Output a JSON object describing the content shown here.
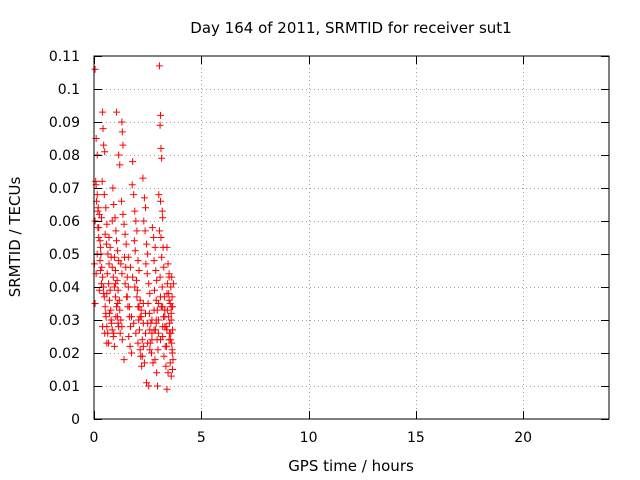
{
  "chart_data": {
    "type": "scatter",
    "title": "Day 164 of 2011, SRMTID for receiver sut1",
    "xlabel": "GPS time / hours",
    "ylabel": "SRMTID / TECUs",
    "xlim": [
      0,
      24
    ],
    "ylim": [
      0,
      0.11
    ],
    "x_ticks": [
      0,
      5,
      10,
      15,
      20
    ],
    "x_tick_labels": [
      "0",
      "5",
      "10",
      "15",
      "20"
    ],
    "y_ticks": [
      0,
      0.01,
      0.02,
      0.03,
      0.04,
      0.05,
      0.06,
      0.07,
      0.08,
      0.09,
      0.1,
      0.11
    ],
    "y_tick_labels": [
      "0",
      "0.01",
      "0.02",
      "0.03",
      "0.04",
      "0.05",
      "0.06",
      "0.07",
      "0.08",
      "0.09",
      "0.1",
      "0.11"
    ],
    "grid": true,
    "legend": "none",
    "marker": "plus",
    "color": "#ff0000",
    "series": [
      {
        "values": [
          [
            0.05,
            0.106
          ],
          [
            0.1,
            0.085
          ],
          [
            0.15,
            0.08
          ],
          [
            0.08,
            0.072
          ],
          [
            0.12,
            0.066
          ],
          [
            0.05,
            0.06
          ],
          [
            0.18,
            0.058
          ],
          [
            0.02,
            0.047
          ],
          [
            0.1,
            0.044
          ],
          [
            0.05,
            0.035
          ],
          [
            0.2,
            0.064
          ],
          [
            0.25,
            0.062
          ],
          [
            0.22,
            0.055
          ],
          [
            0.3,
            0.052
          ],
          [
            0.15,
            0.05
          ],
          [
            0.28,
            0.048
          ],
          [
            0.35,
            0.061
          ],
          [
            0.4,
            0.093
          ],
          [
            0.42,
            0.088
          ],
          [
            0.45,
            0.083
          ],
          [
            0.5,
            0.081
          ],
          [
            0.38,
            0.072
          ],
          [
            0.48,
            0.068
          ],
          [
            0.55,
            0.064
          ],
          [
            0.6,
            0.059
          ],
          [
            0.52,
            0.056
          ],
          [
            0.58,
            0.053
          ],
          [
            0.65,
            0.05
          ],
          [
            0.7,
            0.047
          ],
          [
            0.62,
            0.044
          ],
          [
            0.68,
            0.041
          ],
          [
            0.75,
            0.039
          ],
          [
            0.72,
            0.036
          ],
          [
            0.78,
            0.033
          ],
          [
            0.8,
            0.03
          ],
          [
            0.85,
            0.027
          ],
          [
            0.9,
            0.025
          ],
          [
            0.95,
            0.022
          ],
          [
            0.6,
            0.038
          ],
          [
            0.55,
            0.032
          ],
          [
            0.88,
            0.07
          ],
          [
            0.92,
            0.065
          ],
          [
            0.98,
            0.061
          ],
          [
            1.02,
            0.057
          ],
          [
            1.05,
            0.054
          ],
          [
            1.1,
            0.051
          ],
          [
            1.15,
            0.048
          ],
          [
            1.0,
            0.045
          ],
          [
            1.08,
            0.042
          ],
          [
            1.12,
            0.039
          ],
          [
            1.18,
            0.036
          ],
          [
            1.2,
            0.033
          ],
          [
            1.25,
            0.03
          ],
          [
            1.3,
            0.028
          ],
          [
            1.05,
            0.093
          ],
          [
            1.15,
            0.08
          ],
          [
            1.2,
            0.077
          ],
          [
            1.3,
            0.09
          ],
          [
            1.32,
            0.087
          ],
          [
            1.35,
            0.083
          ],
          [
            1.28,
            0.066
          ],
          [
            1.35,
            0.062
          ],
          [
            1.4,
            0.059
          ],
          [
            1.45,
            0.056
          ],
          [
            1.5,
            0.053
          ],
          [
            1.42,
            0.049
          ],
          [
            1.48,
            0.046
          ],
          [
            1.55,
            0.043
          ],
          [
            1.6,
            0.04
          ],
          [
            1.52,
            0.037
          ],
          [
            1.58,
            0.034
          ],
          [
            1.65,
            0.031
          ],
          [
            1.7,
            0.028
          ],
          [
            1.62,
            0.025
          ],
          [
            1.68,
            0.022
          ],
          [
            1.75,
            0.02
          ],
          [
            1.4,
            0.018
          ],
          [
            1.8,
            0.078
          ],
          [
            1.78,
            0.071
          ],
          [
            1.85,
            0.068
          ],
          [
            1.9,
            0.063
          ],
          [
            1.95,
            0.06
          ],
          [
            2.0,
            0.057
          ],
          [
            1.88,
            0.054
          ],
          [
            1.92,
            0.051
          ],
          [
            2.05,
            0.048
          ],
          [
            2.1,
            0.045
          ],
          [
            1.98,
            0.042
          ],
          [
            2.02,
            0.039
          ],
          [
            2.15,
            0.036
          ],
          [
            2.2,
            0.033
          ],
          [
            2.08,
            0.03
          ],
          [
            2.12,
            0.027
          ],
          [
            2.25,
            0.024
          ],
          [
            2.3,
            0.022
          ],
          [
            2.18,
            0.019
          ],
          [
            2.22,
            0.016
          ],
          [
            2.28,
            0.073
          ],
          [
            2.35,
            0.067
          ],
          [
            2.4,
            0.064
          ],
          [
            2.32,
            0.06
          ],
          [
            2.38,
            0.057
          ],
          [
            2.45,
            0.053
          ],
          [
            2.5,
            0.05
          ],
          [
            2.42,
            0.047
          ],
          [
            2.48,
            0.044
          ],
          [
            2.55,
            0.041
          ],
          [
            2.6,
            0.038
          ],
          [
            2.52,
            0.035
          ],
          [
            2.58,
            0.032
          ],
          [
            2.65,
            0.029
          ],
          [
            2.7,
            0.026
          ],
          [
            2.62,
            0.023
          ],
          [
            2.68,
            0.02
          ],
          [
            2.75,
            0.017
          ],
          [
            2.45,
            0.011
          ],
          [
            2.55,
            0.01
          ],
          [
            2.72,
            0.058
          ],
          [
            2.78,
            0.055
          ],
          [
            2.85,
            0.052
          ],
          [
            2.8,
            0.048
          ],
          [
            2.88,
            0.045
          ],
          [
            2.92,
            0.042
          ],
          [
            2.82,
            0.039
          ],
          [
            2.9,
            0.036
          ],
          [
            2.95,
            0.033
          ],
          [
            3.0,
            0.03
          ],
          [
            2.86,
            0.027
          ],
          [
            2.94,
            0.024
          ],
          [
            2.98,
            0.021
          ],
          [
            2.84,
            0.018
          ],
          [
            2.92,
            0.014
          ],
          [
            2.96,
            0.01
          ],
          [
            3.05,
            0.107
          ],
          [
            3.1,
            0.092
          ],
          [
            3.08,
            0.089
          ],
          [
            3.12,
            0.082
          ],
          [
            3.15,
            0.079
          ],
          [
            3.02,
            0.068
          ],
          [
            3.1,
            0.066
          ],
          [
            3.18,
            0.063
          ],
          [
            3.2,
            0.061
          ],
          [
            3.05,
            0.057
          ],
          [
            3.12,
            0.055
          ],
          [
            3.22,
            0.052
          ],
          [
            3.15,
            0.049
          ],
          [
            3.25,
            0.046
          ],
          [
            3.08,
            0.043
          ],
          [
            3.18,
            0.04
          ],
          [
            3.28,
            0.037
          ],
          [
            3.14,
            0.034
          ],
          [
            3.24,
            0.031
          ],
          [
            3.3,
            0.028
          ],
          [
            3.2,
            0.025
          ],
          [
            3.32,
            0.022
          ],
          [
            3.26,
            0.019
          ],
          [
            3.35,
            0.016
          ],
          [
            3.4,
            0.052
          ],
          [
            3.45,
            0.047
          ],
          [
            3.5,
            0.044
          ],
          [
            3.42,
            0.041
          ],
          [
            3.48,
            0.038
          ],
          [
            3.55,
            0.035
          ],
          [
            3.6,
            0.032
          ],
          [
            3.52,
            0.029
          ],
          [
            3.58,
            0.026
          ],
          [
            3.62,
            0.023
          ],
          [
            3.65,
            0.02
          ],
          [
            3.55,
            0.017
          ],
          [
            3.45,
            0.014
          ],
          [
            3.4,
            0.009
          ],
          [
            3.5,
            0.043
          ],
          [
            3.62,
            0.043
          ],
          [
            3.58,
            0.04
          ],
          [
            3.64,
            0.037
          ],
          [
            3.66,
            0.034
          ],
          [
            3.6,
            0.03
          ],
          [
            3.66,
            0.027
          ],
          [
            3.56,
            0.024
          ],
          [
            3.64,
            0.021
          ],
          [
            3.68,
            0.018
          ],
          [
            3.6,
            0.013
          ],
          [
            3.66,
            0.015
          ],
          [
            3.7,
            0.041
          ],
          [
            3.48,
            0.031
          ],
          [
            3.52,
            0.026
          ],
          [
            3.38,
            0.022
          ],
          [
            3.42,
            0.033
          ],
          [
            3.36,
            0.028
          ],
          [
            0.1,
            0.071
          ],
          [
            0.15,
            0.068
          ],
          [
            0.18,
            0.063
          ],
          [
            0.22,
            0.058
          ],
          [
            0.28,
            0.054
          ],
          [
            0.32,
            0.05
          ],
          [
            0.36,
            0.046
          ],
          [
            0.4,
            0.043
          ],
          [
            0.44,
            0.04
          ],
          [
            0.48,
            0.037
          ],
          [
            0.52,
            0.034
          ],
          [
            0.56,
            0.031
          ],
          [
            0.6,
            0.028
          ],
          [
            0.64,
            0.026
          ],
          [
            0.68,
            0.023
          ],
          [
            0.3,
            0.045
          ],
          [
            0.35,
            0.041
          ],
          [
            0.45,
            0.038
          ],
          [
            0.25,
            0.039
          ],
          [
            0.85,
            0.06
          ],
          [
            0.95,
            0.049
          ],
          [
            1.0,
            0.041
          ],
          [
            1.1,
            0.035
          ],
          [
            1.25,
            0.047
          ],
          [
            1.3,
            0.044
          ],
          [
            1.45,
            0.041
          ],
          [
            1.55,
            0.037
          ],
          [
            1.65,
            0.034
          ],
          [
            1.75,
            0.031
          ],
          [
            1.85,
            0.029
          ],
          [
            1.95,
            0.026
          ],
          [
            2.05,
            0.023
          ],
          [
            2.15,
            0.021
          ],
          [
            2.25,
            0.019
          ],
          [
            2.35,
            0.017
          ],
          [
            2.05,
            0.034
          ],
          [
            2.15,
            0.031
          ],
          [
            2.3,
            0.029
          ],
          [
            2.4,
            0.026
          ],
          [
            2.5,
            0.023
          ],
          [
            2.6,
            0.021
          ],
          [
            2.7,
            0.024
          ],
          [
            2.8,
            0.027
          ],
          [
            2.9,
            0.029
          ],
          [
            3.0,
            0.026
          ],
          [
            3.1,
            0.024
          ],
          [
            3.2,
            0.028
          ],
          [
            3.3,
            0.033
          ],
          [
            3.4,
            0.038
          ],
          [
            3.5,
            0.036
          ],
          [
            3.6,
            0.034
          ],
          [
            1.6,
            0.049
          ],
          [
            1.7,
            0.046
          ],
          [
            1.8,
            0.043
          ],
          [
            1.9,
            0.04
          ],
          [
            2.0,
            0.037
          ],
          [
            2.1,
            0.034
          ],
          [
            2.2,
            0.031
          ],
          [
            2.3,
            0.035
          ],
          [
            2.4,
            0.032
          ],
          [
            2.5,
            0.029
          ],
          [
            2.6,
            0.027
          ],
          [
            2.7,
            0.03
          ],
          [
            2.8,
            0.033
          ],
          [
            2.9,
            0.03
          ],
          [
            3.0,
            0.035
          ],
          [
            3.1,
            0.037
          ],
          [
            3.2,
            0.034
          ],
          [
            3.3,
            0.031
          ],
          [
            3.4,
            0.027
          ],
          [
            3.5,
            0.024
          ],
          [
            0.7,
            0.055
          ],
          [
            0.75,
            0.052
          ],
          [
            0.8,
            0.049
          ],
          [
            0.85,
            0.046
          ],
          [
            0.9,
            0.043
          ],
          [
            0.95,
            0.04
          ],
          [
            1.0,
            0.037
          ],
          [
            1.05,
            0.034
          ],
          [
            1.1,
            0.031
          ],
          [
            1.15,
            0.028
          ],
          [
            0.4,
            0.028
          ],
          [
            0.5,
            0.026
          ],
          [
            0.6,
            0.023
          ],
          [
            0.72,
            0.032
          ],
          [
            0.82,
            0.029
          ],
          [
            0.92,
            0.026
          ],
          [
            1.02,
            0.031
          ],
          [
            1.12,
            0.029
          ],
          [
            1.22,
            0.026
          ],
          [
            1.32,
            0.024
          ]
        ]
      }
    ]
  }
}
